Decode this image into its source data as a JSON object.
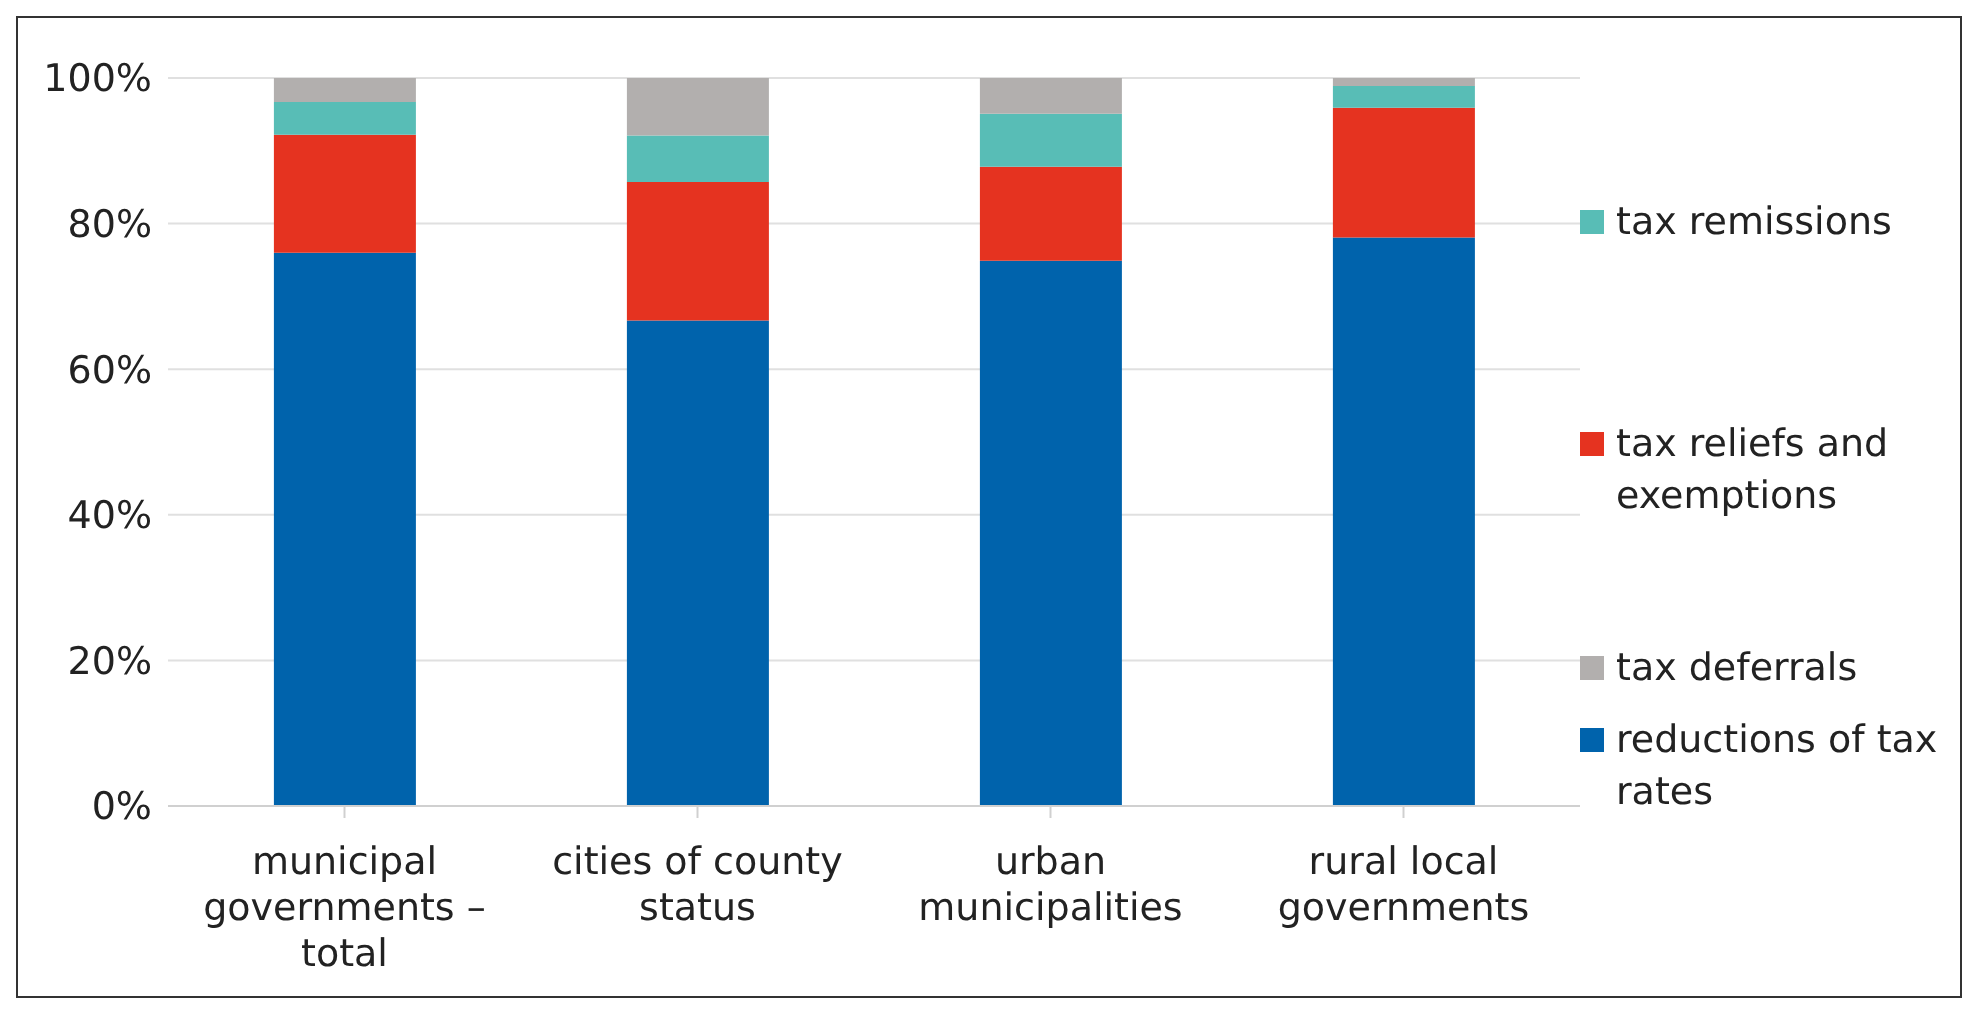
{
  "chart_data": {
    "type": "bar",
    "stacked": true,
    "categories": [
      "municipal governments – total",
      "cities of county status",
      "urban municipalities",
      "rural local governments"
    ],
    "series": [
      {
        "name": "reductions of tax rates",
        "color": "#0063ac",
        "values": [
          76,
          66.7,
          74.9,
          78.1
        ]
      },
      {
        "name": "tax reliefs and exemptions",
        "color": "#e53320",
        "values": [
          16.2,
          19,
          12.9,
          17.8
        ]
      },
      {
        "name": "tax remissions",
        "color": "#58bdb6",
        "values": [
          4.5,
          6.4,
          7.3,
          3
        ]
      },
      {
        "name": "tax deferrals",
        "color": "#b2afae",
        "values": [
          3.3,
          7.9,
          4.9,
          1.1
        ]
      }
    ],
    "ylim": [
      0,
      100
    ],
    "yticks": [
      {
        "value": 0,
        "label": "0%"
      },
      {
        "value": 20,
        "label": "20%"
      },
      {
        "value": 40,
        "label": "40%"
      },
      {
        "value": 60,
        "label": "60%"
      },
      {
        "value": 80,
        "label": "80%"
      },
      {
        "value": 100,
        "label": "100%"
      }
    ],
    "grid": "y",
    "legend": "right"
  }
}
